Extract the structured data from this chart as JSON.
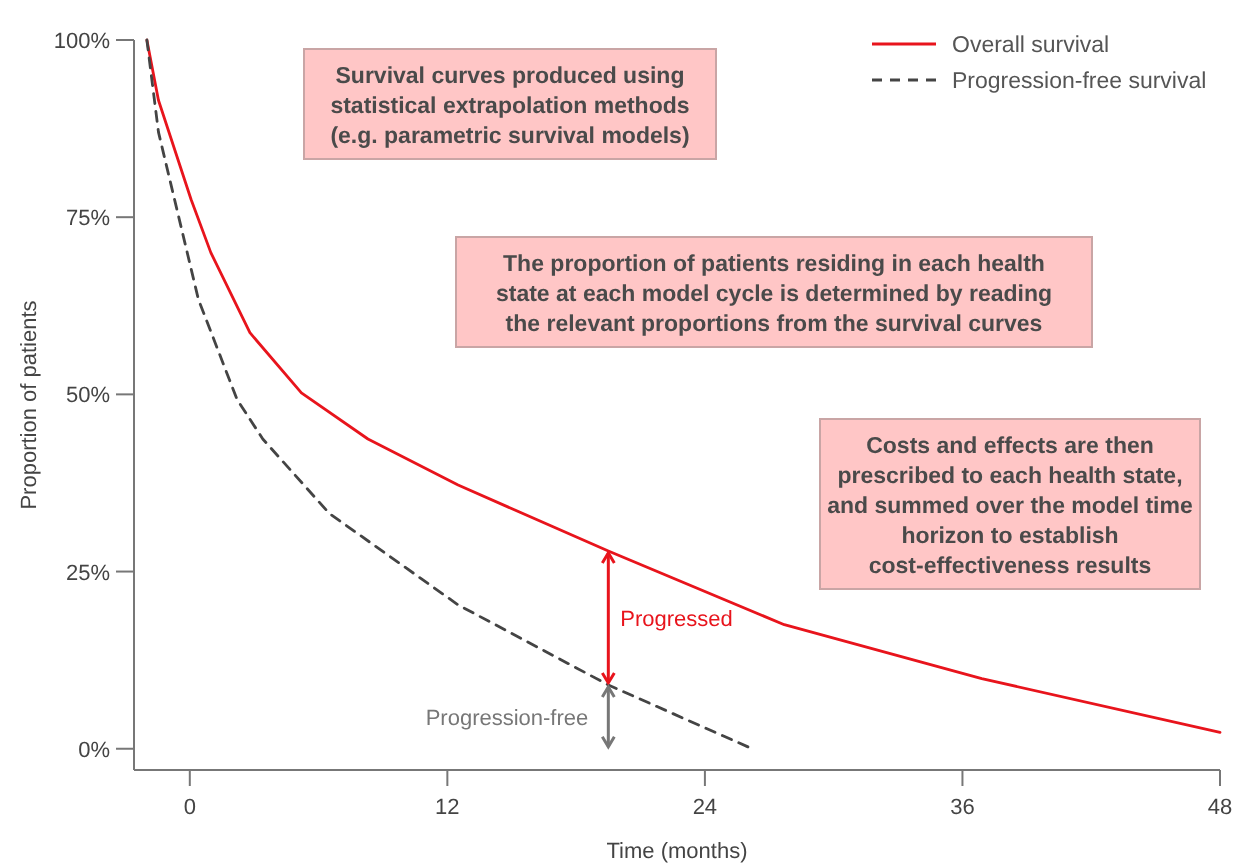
{
  "chart_data": {
    "type": "line",
    "xlabel": "Time (months)",
    "ylabel": "Proportion of patients",
    "xlim": [
      -2.6,
      48
    ],
    "ylim": [
      -3,
      100
    ],
    "xticks": [
      0,
      12,
      24,
      36,
      48
    ],
    "yticks": [
      {
        "value": 0,
        "label": "0%"
      },
      {
        "value": 25,
        "label": "25%"
      },
      {
        "value": 50,
        "label": "50%"
      },
      {
        "value": 75,
        "label": "75%"
      },
      {
        "value": 100,
        "label": "100%"
      }
    ],
    "grid": false,
    "legend": "top right",
    "series": [
      {
        "name": "Overall survival",
        "color": "#e8141c",
        "line_style": "solid",
        "x": [
          -2,
          -1.46,
          0.06,
          0.98,
          2.8,
          5.2,
          8.3,
          12.5,
          19.5,
          27.7,
          36.9,
          48
        ],
        "values": [
          100,
          91.5,
          77.5,
          70,
          58.7,
          50.2,
          43.7,
          37.2,
          27.9,
          17.5,
          9.9,
          2.3
        ]
      },
      {
        "name": "Progression-free survival",
        "color": "#444444",
        "line_style": "dashed",
        "x": [
          -2,
          -1.46,
          0.4,
          2.2,
          3.4,
          6.5,
          12.5,
          19.5,
          26.2
        ],
        "values": [
          100,
          87,
          63.4,
          49.3,
          43.7,
          33.2,
          20.3,
          9,
          0
        ]
      }
    ],
    "annotations": [
      "Survival curves produced using statistical extrapolation methods (e.g. parametric survival models)",
      "The proportion of patients residing in each health state at each model cycle is determined by reading the relevant proportions from the survival curves",
      "Costs and effects are then prescribed to each health state, and summed over the model time horizon to establish cost-effectiveness results",
      "Progressed",
      "Progression-free"
    ]
  }
}
